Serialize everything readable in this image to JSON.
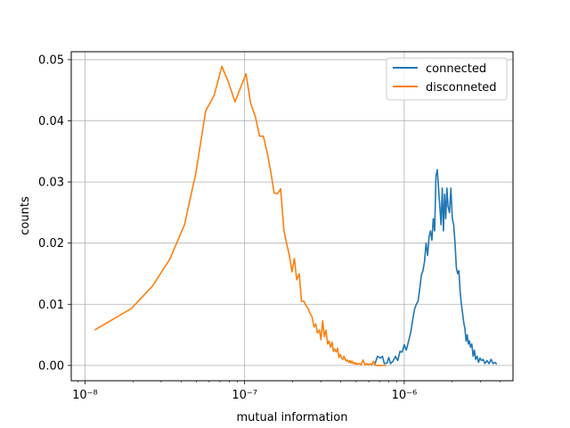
{
  "chart_data": {
    "type": "line",
    "xlabel": "mutual information",
    "ylabel": "counts",
    "xscale": "log",
    "xlim": [
      8.2e-09,
      4.8e-06
    ],
    "ylim": [
      -0.0025,
      0.0513
    ],
    "grid": true,
    "legend_position": "top-right",
    "x_ticks": [
      {
        "value": 1e-08,
        "label": "10⁻⁸"
      },
      {
        "value": 1e-07,
        "label": "10⁻⁷"
      },
      {
        "value": 1e-06,
        "label": "10⁻⁶"
      }
    ],
    "y_ticks": [
      {
        "value": 0.0,
        "label": "0.00"
      },
      {
        "value": 0.01,
        "label": "0.01"
      },
      {
        "value": 0.02,
        "label": "0.02"
      },
      {
        "value": 0.03,
        "label": "0.03"
      },
      {
        "value": 0.04,
        "label": "0.04"
      },
      {
        "value": 0.05,
        "label": "0.05"
      }
    ],
    "series": [
      {
        "name": "connected",
        "color": "#1f77b4",
        "points": [
          [
            6.5e-07,
            0.0
          ],
          [
            6.8e-07,
            0.0015
          ],
          [
            7.1e-07,
            0.0012
          ],
          [
            7.3e-07,
            0.0015
          ],
          [
            7.5e-07,
            0.0003
          ],
          [
            7.8e-07,
            0.0004
          ],
          [
            8e-07,
            0.0013
          ],
          [
            8.2e-07,
            0.0003
          ],
          [
            8.5e-07,
            0.0007
          ],
          [
            8.8e-07,
            0.0015
          ],
          [
            9.1e-07,
            0.0008
          ],
          [
            9.4e-07,
            0.0023
          ],
          [
            9.7e-07,
            0.0022
          ],
          [
            1e-06,
            0.0034
          ],
          [
            1.03e-06,
            0.0025
          ],
          [
            1.06e-06,
            0.0038
          ],
          [
            1.1e-06,
            0.0055
          ],
          [
            1.13e-06,
            0.0075
          ],
          [
            1.16e-06,
            0.0092
          ],
          [
            1.19e-06,
            0.01
          ],
          [
            1.22e-06,
            0.0105
          ],
          [
            1.25e-06,
            0.0125
          ],
          [
            1.28e-06,
            0.0148
          ],
          [
            1.31e-06,
            0.0155
          ],
          [
            1.34e-06,
            0.017
          ],
          [
            1.37e-06,
            0.02
          ],
          [
            1.4e-06,
            0.018
          ],
          [
            1.43e-06,
            0.021
          ],
          [
            1.46e-06,
            0.022
          ],
          [
            1.49e-06,
            0.0205
          ],
          [
            1.52e-06,
            0.024
          ],
          [
            1.55e-06,
            0.022
          ],
          [
            1.58e-06,
            0.031
          ],
          [
            1.61e-06,
            0.032
          ],
          [
            1.64e-06,
            0.029
          ],
          [
            1.67e-06,
            0.026
          ],
          [
            1.7e-06,
            0.023
          ],
          [
            1.73e-06,
            0.029
          ],
          [
            1.76e-06,
            0.022
          ],
          [
            1.79e-06,
            0.028
          ],
          [
            1.82e-06,
            0.024
          ],
          [
            1.85e-06,
            0.029
          ],
          [
            1.88e-06,
            0.026
          ],
          [
            1.92e-06,
            0.025
          ],
          [
            1.96e-06,
            0.029
          ],
          [
            2e-06,
            0.024
          ],
          [
            2.04e-06,
            0.023
          ],
          [
            2.08e-06,
            0.02
          ],
          [
            2.12e-06,
            0.016
          ],
          [
            2.16e-06,
            0.015
          ],
          [
            2.2e-06,
            0.0155
          ],
          [
            2.24e-06,
            0.012
          ],
          [
            2.28e-06,
            0.01
          ],
          [
            2.32e-06,
            0.0085
          ],
          [
            2.36e-06,
            0.007
          ],
          [
            2.4e-06,
            0.006
          ],
          [
            2.44e-06,
            0.004
          ],
          [
            2.48e-06,
            0.005
          ],
          [
            2.52e-06,
            0.0035
          ],
          [
            2.56e-06,
            0.004
          ],
          [
            2.6e-06,
            0.003
          ],
          [
            2.65e-06,
            0.0035
          ],
          [
            2.7e-06,
            0.0015
          ],
          [
            2.75e-06,
            0.0025
          ],
          [
            2.8e-06,
            0.001
          ],
          [
            2.86e-06,
            0.0015
          ],
          [
            2.92e-06,
            0.0005
          ],
          [
            2.98e-06,
            0.0012
          ],
          [
            3.05e-06,
            0.0008
          ],
          [
            3.12e-06,
            0.001
          ],
          [
            3.2e-06,
            0.0003
          ],
          [
            3.3e-06,
            0.0008
          ],
          [
            3.4e-06,
            0.0003
          ],
          [
            3.5e-06,
            0.001
          ],
          [
            3.6e-06,
            0.0003
          ],
          [
            3.7e-06,
            0.0005
          ],
          [
            3.8e-06,
            0.0002
          ]
        ]
      },
      {
        "name": "disconneted",
        "color": "#ff7f0e",
        "points": [
          [
            1.15e-08,
            0.0058
          ],
          [
            1.95e-08,
            0.0093
          ],
          [
            2.65e-08,
            0.013
          ],
          [
            3.4e-08,
            0.0174
          ],
          [
            4.2e-08,
            0.023
          ],
          [
            4.95e-08,
            0.0315
          ],
          [
            5.7e-08,
            0.0416
          ],
          [
            6.45e-08,
            0.0442
          ],
          [
            7.2e-08,
            0.0489
          ],
          [
            7.95e-08,
            0.0462
          ],
          [
            8.7e-08,
            0.0431
          ],
          [
            1.02e-07,
            0.0477
          ],
          [
            1.09e-07,
            0.0429
          ],
          [
            1.17e-07,
            0.0406
          ],
          [
            1.24e-07,
            0.0375
          ],
          [
            1.31e-07,
            0.0375
          ],
          [
            1.39e-07,
            0.0346
          ],
          [
            1.46e-07,
            0.0316
          ],
          [
            1.53e-07,
            0.0282
          ],
          [
            1.61e-07,
            0.0281
          ],
          [
            1.68e-07,
            0.0289
          ],
          [
            1.76e-07,
            0.0222
          ],
          [
            1.83e-07,
            0.02
          ],
          [
            1.9e-07,
            0.0182
          ],
          [
            1.98e-07,
            0.0153
          ],
          [
            2.05e-07,
            0.0175
          ],
          [
            2.12e-07,
            0.014
          ],
          [
            2.2e-07,
            0.015
          ],
          [
            2.27e-07,
            0.0105
          ],
          [
            2.35e-07,
            0.0105
          ],
          [
            2.42e-07,
            0.0098
          ],
          [
            2.5e-07,
            0.0093
          ],
          [
            2.57e-07,
            0.0085
          ],
          [
            2.64e-07,
            0.008
          ],
          [
            2.72e-07,
            0.0063
          ],
          [
            2.79e-07,
            0.0068
          ],
          [
            2.86e-07,
            0.0053
          ],
          [
            2.94e-07,
            0.0058
          ],
          [
            3.01e-07,
            0.0042
          ],
          [
            3.08e-07,
            0.0073
          ],
          [
            3.16e-07,
            0.0047
          ],
          [
            3.23e-07,
            0.0058
          ],
          [
            3.31e-07,
            0.0035
          ],
          [
            3.38e-07,
            0.004
          ],
          [
            3.45e-07,
            0.003
          ],
          [
            3.53e-07,
            0.0038
          ],
          [
            3.6e-07,
            0.0023
          ],
          [
            3.67e-07,
            0.0027
          ],
          [
            3.75e-07,
            0.0022
          ],
          [
            3.82e-07,
            0.0028
          ],
          [
            3.9e-07,
            0.0013
          ],
          [
            3.97e-07,
            0.0018
          ],
          [
            4.04e-07,
            0.0012
          ],
          [
            4.12e-07,
            0.001
          ],
          [
            4.19e-07,
            0.0015
          ],
          [
            4.27e-07,
            0.001
          ],
          [
            4.34e-07,
            0.0007
          ],
          [
            4.41e-07,
            0.0009
          ],
          [
            4.49e-07,
            0.0005
          ],
          [
            4.56e-07,
            0.0008
          ],
          [
            4.63e-07,
            0.0004
          ],
          [
            4.71e-07,
            0.0007
          ],
          [
            4.78e-07,
            0.0003
          ],
          [
            4.86e-07,
            0.0005
          ],
          [
            4.93e-07,
            0.0002
          ],
          [
            5e-07,
            0.0004
          ],
          [
            5.08e-07,
            0.0002
          ],
          [
            5.23e-07,
            0.0003
          ],
          [
            5.37e-07,
            0.0001
          ],
          [
            5.52e-07,
            0.0009
          ],
          [
            5.67e-07,
            0.0001
          ],
          [
            5.82e-07,
            0.0003
          ],
          [
            5.97e-07,
            0.0001
          ],
          [
            6.12e-07,
            0.0003
          ],
          [
            6.27e-07,
            0.0001
          ],
          [
            6.42e-07,
            0.0007
          ],
          [
            6.57e-07,
            0.0001
          ],
          [
            6.71e-07,
            0.0
          ],
          [
            7e-07,
            0.0
          ],
          [
            7.3e-07,
            0.0
          ],
          [
            7.7e-07,
            0.0
          ]
        ]
      }
    ]
  }
}
